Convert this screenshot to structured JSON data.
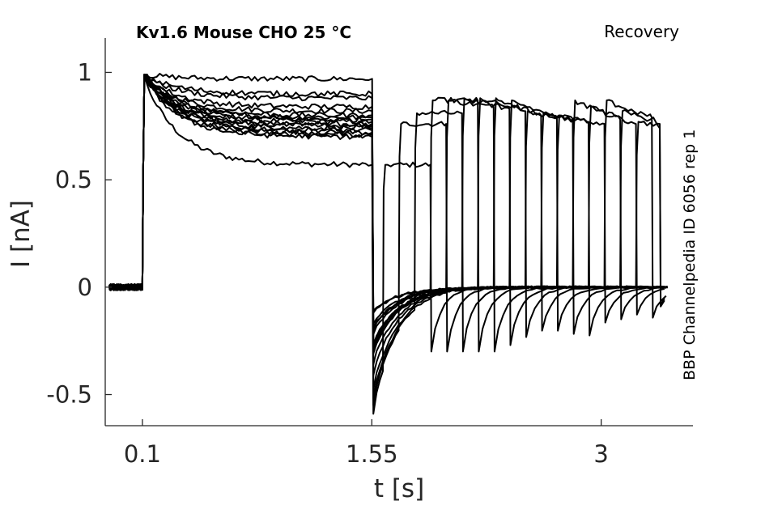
{
  "chart_data": {
    "type": "line",
    "title": "Kv1.6  Mouse  CHO  25 °C",
    "corner_label": "Recovery",
    "side_label": "BBP Channelpedia ID 6056 rep 1",
    "xlabel": "t [s]",
    "ylabel": "I [nA]",
    "xlim": [
      -0.135,
      3.58
    ],
    "ylim": [
      -0.645,
      1.16
    ],
    "xticks": [
      0.1,
      1.55,
      3
    ],
    "xtick_labels": [
      "0.1",
      "1.55",
      "3"
    ],
    "yticks": [
      -0.5,
      0,
      0.5,
      1
    ],
    "ytick_labels": [
      "-0.5",
      "0",
      "0.5",
      "1"
    ],
    "grid": false,
    "conditioning_pulse": {
      "start": 0.1,
      "end": 1.55
    },
    "test_pulse_width": 0.3,
    "sweeps": [
      {
        "test_start": 1.62,
        "decay_level": 0.57,
        "test_peak": 0.57,
        "recovered_level": 0.57,
        "tail": -0.59
      },
      {
        "test_start": 1.72,
        "decay_level": 0.77,
        "test_peak": 0.76,
        "recovered_level": 0.76,
        "tail": -0.55
      },
      {
        "test_start": 1.82,
        "decay_level": 0.82,
        "test_peak": 0.81,
        "recovered_level": 0.81,
        "tail": -0.52
      },
      {
        "test_start": 1.92,
        "decay_level": 0.97,
        "test_peak": 0.87,
        "recovered_level": 0.87,
        "tail": -0.48
      },
      {
        "test_start": 2.02,
        "decay_level": 0.79,
        "test_peak": 0.87,
        "recovered_level": 0.84,
        "tail": -0.41
      },
      {
        "test_start": 2.12,
        "decay_level": 0.74,
        "test_peak": 0.88,
        "recovered_level": 0.83,
        "tail": -0.36
      },
      {
        "test_start": 2.22,
        "decay_level": 0.72,
        "test_peak": 0.88,
        "recovered_level": 0.82,
        "tail": -0.31
      },
      {
        "test_start": 2.32,
        "decay_level": 0.84,
        "test_peak": 0.88,
        "recovered_level": 0.8,
        "tail": -0.27
      },
      {
        "test_start": 2.42,
        "decay_level": 0.88,
        "test_peak": 0.87,
        "recovered_level": 0.79,
        "tail": -0.27
      },
      {
        "test_start": 2.52,
        "decay_level": 0.76,
        "test_peak": 0.82,
        "recovered_level": 0.78,
        "tail": -0.29
      },
      {
        "test_start": 2.62,
        "decay_level": 0.71,
        "test_peak": 0.81,
        "recovered_level": 0.77,
        "tail": -0.3
      },
      {
        "test_start": 2.72,
        "decay_level": 0.8,
        "test_peak": 0.8,
        "recovered_level": 0.76,
        "tail": -0.22
      },
      {
        "test_start": 2.82,
        "decay_level": 0.73,
        "test_peak": 0.87,
        "recovered_level": 0.78,
        "tail": -0.2
      },
      {
        "test_start": 2.92,
        "decay_level": 0.9,
        "test_peak": 0.84,
        "recovered_level": 0.76,
        "tail": -0.17
      },
      {
        "test_start": 3.02,
        "decay_level": 0.75,
        "test_peak": 0.87,
        "recovered_level": 0.79,
        "tail": -0.19
      },
      {
        "test_start": 3.12,
        "decay_level": 0.7,
        "test_peak": 0.82,
        "recovered_level": 0.76,
        "tail": -0.12
      },
      {
        "test_start": 3.22,
        "decay_level": 0.78,
        "test_peak": 0.77,
        "recovered_level": 0.74,
        "tail": -0.11
      }
    ]
  }
}
